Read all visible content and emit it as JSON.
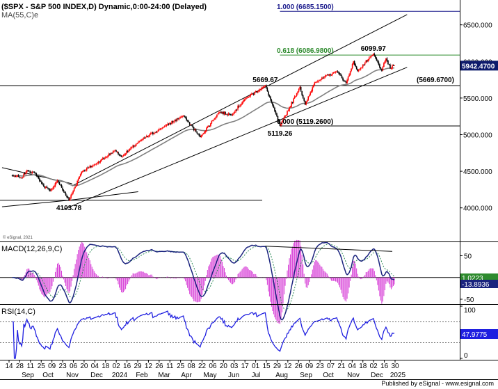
{
  "header": {
    "symbol_line": "($SPX - S&P 500 INDEX,D) Dynamic,0:00-24:00 (Delayed)",
    "ma_label": "MA(55,C)e",
    "copyright": "© eSignal, 2021",
    "footer": "Published by eSignal - www.esignal.com"
  },
  "colors": {
    "up_candle": "#ff0000",
    "down_candle": "#000000",
    "ma_line": "#808080",
    "fib_top": "#1a1a8c",
    "fib_618": "#2e8b2e",
    "macd_line": "#1a237e",
    "signal_line": "#2e8b57",
    "histogram": "#d63bd6",
    "rsi_line": "#1f1fe0",
    "price_badge": "#0d1a6b"
  },
  "chart_data": [
    {
      "type": "candlestick",
      "panel": "price",
      "title": "$SPX - S&P 500 INDEX, D",
      "ylim": [
        3560,
        6820
      ],
      "y_ticks": [
        "6500.000",
        "6000.000",
        "5500.000",
        "5000.000",
        "4500.000",
        "4000.000"
      ],
      "y_tick_values": [
        6500,
        6000,
        5500,
        5000,
        4500,
        4000
      ],
      "x_tick_labels": [
        "14",
        "28",
        "11",
        "25",
        "09",
        "23",
        "06",
        "20",
        "04",
        "18",
        "02",
        "16",
        "29",
        "12",
        "26",
        "11",
        "25",
        "08",
        "22",
        "06",
        "20",
        "03",
        "17",
        "01",
        "15",
        "29",
        "12",
        "26",
        "09",
        "23",
        "07",
        "21",
        "04",
        "18",
        "02",
        "16",
        "30"
      ],
      "month_labels": [
        "Sep",
        "Oct",
        "Nov",
        "Dec",
        "2024",
        "Feb",
        "Mar",
        "Apr",
        "May",
        "Jun",
        "Jul",
        "Aug",
        "Sep",
        "Oct",
        "Nov",
        "Dec",
        "2025"
      ],
      "anchors": [
        {
          "x": "2023-08-15",
          "y": 4440
        },
        {
          "x": "2023-08-25",
          "y": 4405
        },
        {
          "x": "2023-09-01",
          "y": 4515
        },
        {
          "x": "2023-09-13",
          "y": 4470
        },
        {
          "x": "2023-09-21",
          "y": 4330
        },
        {
          "x": "2023-10-03",
          "y": 4230
        },
        {
          "x": "2023-10-12",
          "y": 4375
        },
        {
          "x": "2023-10-27",
          "y": 4103.78
        },
        {
          "x": "2023-11-14",
          "y": 4495
        },
        {
          "x": "2023-12-01",
          "y": 4595
        },
        {
          "x": "2023-12-28",
          "y": 4785
        },
        {
          "x": "2024-01-05",
          "y": 4700
        },
        {
          "x": "2024-01-31",
          "y": 4920
        },
        {
          "x": "2024-02-29",
          "y": 5095
        },
        {
          "x": "2024-03-28",
          "y": 5260
        },
        {
          "x": "2024-04-19",
          "y": 4967
        },
        {
          "x": "2024-05-15",
          "y": 5310
        },
        {
          "x": "2024-05-31",
          "y": 5270
        },
        {
          "x": "2024-06-18",
          "y": 5480
        },
        {
          "x": "2024-07-16",
          "y": 5669.67
        },
        {
          "x": "2024-07-25",
          "y": 5400
        },
        {
          "x": "2024-08-05",
          "y": 5119.26
        },
        {
          "x": "2024-08-30",
          "y": 5650
        },
        {
          "x": "2024-09-06",
          "y": 5408
        },
        {
          "x": "2024-09-19",
          "y": 5713
        },
        {
          "x": "2024-10-18",
          "y": 5865
        },
        {
          "x": "2024-10-31",
          "y": 5705
        },
        {
          "x": "2024-11-11",
          "y": 6001
        },
        {
          "x": "2024-11-15",
          "y": 5870
        },
        {
          "x": "2024-12-06",
          "y": 6099.97
        },
        {
          "x": "2024-12-18",
          "y": 5872
        },
        {
          "x": "2024-12-24",
          "y": 6040
        },
        {
          "x": "2024-12-30",
          "y": 5906
        },
        {
          "x": "2025-01-02",
          "y": 5942.47
        }
      ],
      "annotations": [
        {
          "text": "4103.78",
          "x": "2023-10-27",
          "y": 4103.78,
          "position": "below"
        },
        {
          "text": "5669.67",
          "x": "2024-07-16",
          "y": 5669.67,
          "position": "above"
        },
        {
          "text": "5119.26",
          "x": "2024-08-05",
          "y": 5119.26,
          "position": "below"
        },
        {
          "text": "6099.97",
          "x": "2024-12-06",
          "y": 6099.97,
          "position": "above"
        }
      ],
      "fib_levels": [
        {
          "label": "1.000 (6685.1500)",
          "value": 6685.15,
          "color": "#1a1a8c"
        },
        {
          "label": "0.618 (6086.9800)",
          "value": 6086.98,
          "color": "#2e8b2e"
        },
        {
          "label": "0.000 (5119.2600)",
          "value": 5119.26,
          "color": "#000000"
        }
      ],
      "horizontal_lines": [
        {
          "label": "(5669.6700)",
          "value": 5669.67
        },
        {
          "label": "",
          "value": 4103.78
        }
      ],
      "trendlines": [
        {
          "from": {
            "x": "2023-11-01",
            "y": 4300
          },
          "to": {
            "x": "2025-01-20",
            "y": 6640
          }
        },
        {
          "from": {
            "x": "2023-10-20",
            "y": 3980
          },
          "to": {
            "x": "2025-01-20",
            "y": 5920
          }
        },
        {
          "from": {
            "x": "2023-07-31",
            "y": 4550
          },
          "to": {
            "x": "2023-11-01",
            "y": 4330
          }
        },
        {
          "from": {
            "x": "2023-07-31",
            "y": 4015
          },
          "to": {
            "x": "2023-10-27",
            "y": 4103.78
          }
        },
        {
          "from": {
            "x": "2023-10-27",
            "y": 4103.78
          },
          "to": {
            "x": "2024-01-29",
            "y": 4220
          }
        }
      ],
      "last_price_label": "5942.4700",
      "last_price": 5942.47,
      "moving_average": {
        "name": "MA(55,C)e",
        "period": 55
      }
    },
    {
      "type": "line",
      "panel": "macd",
      "title": "MACD(12,26,9,C)",
      "ylim": [
        -58,
        78
      ],
      "y_ticks": [
        "50",
        "0",
        "-50"
      ],
      "y_tick_values": [
        50,
        0,
        -50
      ],
      "badges": [
        "1.0223",
        "-13.8936"
      ],
      "trendline": {
        "from": {
          "x": "2024-07-16",
          "y": 72
        },
        "to": {
          "x": "2025-01-01",
          "y": 60
        }
      }
    },
    {
      "type": "line",
      "panel": "rsi",
      "title": "RSI(14,C)",
      "ylim": [
        0,
        100
      ],
      "y_ticks": [
        "100",
        "0"
      ],
      "y_tick_values": [
        100,
        0
      ],
      "reference_levels": [
        70,
        30
      ],
      "last_value_label": "47.9775"
    }
  ]
}
